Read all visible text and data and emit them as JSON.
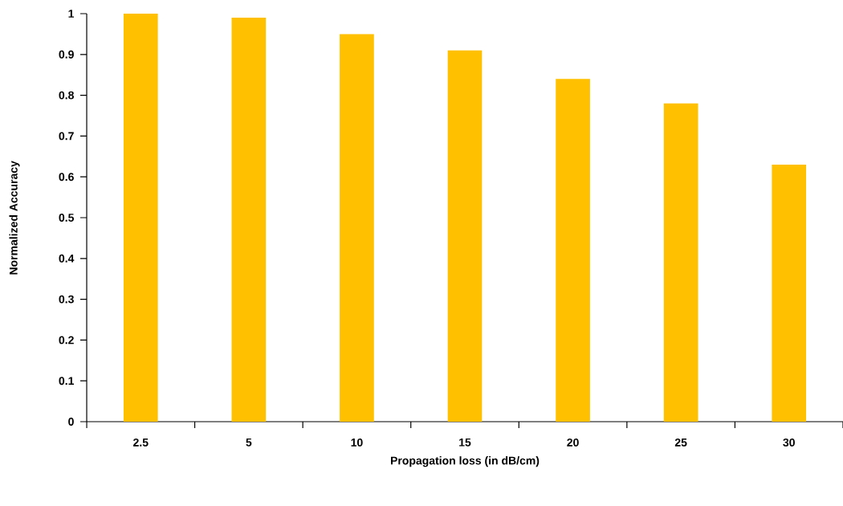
{
  "chart_data": {
    "type": "bar",
    "xlabel": "Propagation loss (in dB/cm)",
    "ylabel": "Normalized Accuracy",
    "categories": [
      "2.5",
      "5",
      "10",
      "15",
      "20",
      "25",
      "30"
    ],
    "values": [
      1.0,
      0.99,
      0.95,
      0.91,
      0.84,
      0.78,
      0.63
    ],
    "color": "#ffc000",
    "ylim": [
      0,
      1
    ],
    "yticks": [
      0,
      0.1,
      0.2,
      0.3,
      0.4,
      0.5,
      0.6,
      0.7,
      0.8,
      0.9,
      1
    ],
    "grid": false
  }
}
